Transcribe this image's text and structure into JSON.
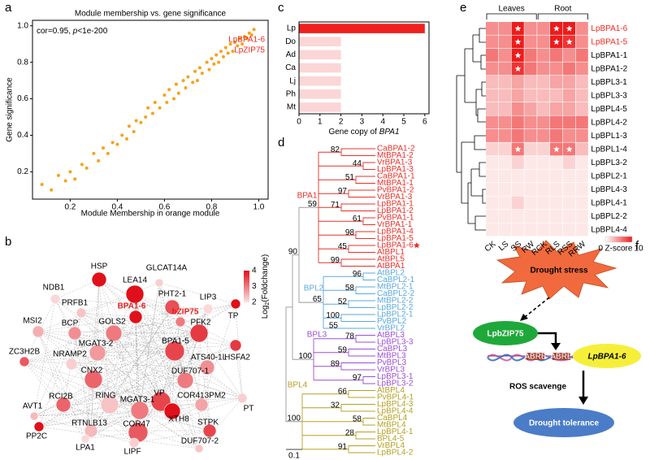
{
  "panel_labels": [
    "a",
    "b",
    "c",
    "d",
    "e",
    "f"
  ],
  "chart_data": [
    {
      "type": "scatter",
      "title": "Module membership vs. gene significance",
      "xlabel": "Module Membership in orange module",
      "ylabel": "Gene significance",
      "annotation": {
        "prefix": "cor=0.95, ",
        "italic": "p",
        "suffix": "<1e-200"
      },
      "highlight_labels": [
        "LpBPA1-6",
        "LpZIP75"
      ],
      "highlight_color": "#f0281e",
      "color": "#f6a21c",
      "xlim": [
        0.04,
        1.04
      ],
      "ylim": [
        0.05,
        1.03
      ],
      "xticks": [
        0.2,
        0.4,
        0.6,
        0.8,
        {
          "value": 1,
          "label": "1.0"
        }
      ],
      "yticks": [
        0.2,
        0.4,
        0.6,
        0.8,
        {
          "value": 1,
          "label": "1.0"
        }
      ],
      "x": [
        0.08,
        0.12,
        0.15,
        0.18,
        0.2,
        0.22,
        0.25,
        0.27,
        0.3,
        0.32,
        0.34,
        0.36,
        0.38,
        0.4,
        0.42,
        0.44,
        0.45,
        0.47,
        0.48,
        0.5,
        0.52,
        0.53,
        0.55,
        0.56,
        0.58,
        0.6,
        0.61,
        0.62,
        0.64,
        0.65,
        0.66,
        0.68,
        0.69,
        0.7,
        0.72,
        0.73,
        0.74,
        0.75,
        0.76,
        0.78,
        0.79,
        0.8,
        0.81,
        0.82,
        0.83,
        0.84,
        0.85,
        0.86,
        0.87,
        0.88,
        0.89,
        0.9,
        0.91,
        0.92,
        0.93,
        0.94,
        0.95,
        0.96,
        0.97,
        0.98
      ],
      "y": [
        0.13,
        0.1,
        0.18,
        0.15,
        0.2,
        0.16,
        0.24,
        0.22,
        0.3,
        0.26,
        0.33,
        0.3,
        0.36,
        0.35,
        0.4,
        0.38,
        0.45,
        0.42,
        0.48,
        0.47,
        0.5,
        0.55,
        0.52,
        0.58,
        0.55,
        0.62,
        0.58,
        0.65,
        0.6,
        0.68,
        0.63,
        0.7,
        0.66,
        0.72,
        0.69,
        0.75,
        0.7,
        0.77,
        0.74,
        0.8,
        0.76,
        0.82,
        0.79,
        0.84,
        0.8,
        0.86,
        0.83,
        0.88,
        0.85,
        0.9,
        0.86,
        0.91,
        0.89,
        0.93,
        0.9,
        0.94,
        0.93,
        0.96,
        0.95,
        0.98
      ]
    },
    {
      "type": "bar",
      "orientation": "horizontal",
      "categories": [
        "Lp",
        "Do",
        "Ad",
        "Ca",
        "Lj",
        "Ph",
        "Mt"
      ],
      "values": [
        6,
        2,
        2,
        2,
        2,
        2,
        2
      ],
      "colors": [
        "#f0201e",
        "#fbd6d6",
        "#fbd6d6",
        "#fbd6d6",
        "#fbd6d6",
        "#fbd6d6",
        "#fbd6d6"
      ],
      "xlabel": {
        "prefix": "Gene copy of ",
        "italic": "BPA1"
      },
      "xlim": [
        0,
        6.2
      ],
      "xticks": [
        0,
        1,
        2,
        3,
        4,
        5,
        6
      ]
    },
    {
      "type": "heatmap",
      "rows": [
        "LpBPA1-6",
        "LpBPA1-5",
        "LpBPA1-1",
        "LpBPA1-2",
        "LpBPL3-1",
        "LpBPL3-3",
        "LpBPL4-5",
        "LpBPL4-2",
        "LpBPL1-3",
        "LpBPL1-4",
        "LpBPL3-2",
        "LpBPL2-1",
        "LpBPL4-3",
        "LpBPL4-1",
        "LpBPL2-2",
        "LpBPL4-4"
      ],
      "columns": [
        "CK",
        "LS",
        "SS",
        "RW",
        "RCK",
        "RLS",
        "RSS",
        "RRW"
      ],
      "groups": [
        {
          "name": "Leaves",
          "columns": [
            0,
            3
          ]
        },
        {
          "name": "Root",
          "columns": [
            4,
            7
          ]
        }
      ],
      "highlight_rows": [
        0,
        1
      ],
      "highlight_color": "#f0281e",
      "values": [
        [
          5,
          5,
          10,
          5,
          5,
          10,
          10,
          5
        ],
        [
          5,
          5,
          10,
          5,
          5,
          10,
          9,
          5
        ],
        [
          6,
          5,
          10,
          6,
          5,
          6,
          5,
          6
        ],
        [
          5,
          5,
          9,
          6,
          5,
          5,
          6,
          5
        ],
        [
          3,
          3,
          4,
          3,
          3,
          4,
          4,
          3
        ],
        [
          3,
          3,
          4,
          3,
          3,
          3,
          4,
          3
        ],
        [
          3,
          3,
          5,
          4,
          3,
          4,
          4,
          3
        ],
        [
          5,
          5,
          6,
          5,
          5,
          6,
          6,
          6
        ],
        [
          5,
          5,
          6,
          5,
          5,
          6,
          5,
          5
        ],
        [
          2,
          2,
          6,
          2,
          2,
          6,
          6,
          3
        ],
        [
          1,
          1,
          2,
          1,
          1,
          1,
          2,
          1
        ],
        [
          1,
          1,
          1,
          1,
          1,
          1,
          1,
          1
        ],
        [
          1,
          1,
          1,
          1,
          1,
          1,
          1,
          1
        ],
        [
          1,
          1,
          2,
          1,
          1,
          1,
          1,
          1
        ],
        [
          1,
          1,
          1,
          1,
          1,
          1,
          1,
          1
        ],
        [
          1,
          1,
          1,
          1,
          1,
          1,
          1,
          1
        ]
      ],
      "stars": [
        [
          0,
          2
        ],
        [
          0,
          5
        ],
        [
          0,
          6
        ],
        [
          1,
          2
        ],
        [
          1,
          5
        ],
        [
          1,
          6
        ],
        [
          2,
          2
        ],
        [
          3,
          2
        ],
        [
          9,
          2
        ],
        [
          9,
          5
        ],
        [
          9,
          6
        ]
      ],
      "colorbar": {
        "label": "Z-score",
        "ticks": [
          0,
          10
        ],
        "colors": [
          "#ffffff",
          "#ec1c1c"
        ]
      }
    }
  ],
  "network": {
    "colorbar": {
      "label_prefix": "Log",
      "label_sub": "2",
      "label_suffix": "(Foldchange)",
      "ticks": [
        2,
        3,
        4
      ],
      "colors": [
        "#fbe3e3",
        "#e0101a"
      ]
    },
    "highlight_color": "#e0201e",
    "nodes": [
      {
        "label": "HSP",
        "log2fc": 4
      },
      {
        "label": "GLCAT14A",
        "log2fc": 2.2
      },
      {
        "label": "LEA14",
        "log2fc": 4
      },
      {
        "label": "NDB1",
        "log2fc": 2.1
      },
      {
        "label": "PRFB1",
        "log2fc": 2.3
      },
      {
        "label": "PHT2-1",
        "log2fc": 3.4
      },
      {
        "label": "LIP3",
        "log2fc": 2.1
      },
      {
        "label": "BPA1-6",
        "log2fc": 4,
        "highlight": true
      },
      {
        "label": "bZIP75",
        "log2fc": 3,
        "highlight": true
      },
      {
        "label": "TP",
        "log2fc": 4
      },
      {
        "label": "MSI2",
        "log2fc": 2.5
      },
      {
        "label": "BCP",
        "log2fc": 2.8
      },
      {
        "label": "GOLS2",
        "log2fc": 3
      },
      {
        "label": "PFK2",
        "log2fc": 3.6
      },
      {
        "label": "BPA1-5",
        "log2fc": 3.5
      },
      {
        "label": "HSFA2",
        "log2fc": 3.6
      },
      {
        "label": "ZC3H2B",
        "log2fc": 3.3
      },
      {
        "label": "NRAMP2",
        "log2fc": 2.2
      },
      {
        "label": "MGAT3-2",
        "log2fc": 2.7
      },
      {
        "label": "ATS40-1L",
        "log2fc": 2.8
      },
      {
        "label": "DUF707-1",
        "log2fc": 3
      },
      {
        "label": "CNX2",
        "log2fc": 3.2
      },
      {
        "label": "AVT1",
        "log2fc": 2.4
      },
      {
        "label": "RCI2B",
        "log2fc": 3.2
      },
      {
        "label": "RING",
        "log2fc": 2.3
      },
      {
        "label": "MGAT3-1",
        "log2fc": 3
      },
      {
        "label": "VP",
        "log2fc": 3.5
      },
      {
        "label": "COR413PM2",
        "log2fc": 2.6
      },
      {
        "label": "PT",
        "log2fc": 2.2
      },
      {
        "label": "RTNLB13",
        "log2fc": 2.4
      },
      {
        "label": "XTH8",
        "log2fc": 4
      },
      {
        "label": "COR47",
        "log2fc": 3.3
      },
      {
        "label": "STPK",
        "log2fc": 3.5
      },
      {
        "label": "PP2C",
        "log2fc": 4
      },
      {
        "label": "LPA1",
        "log2fc": 2.1
      },
      {
        "label": "LIPF",
        "log2fc": 2.2
      },
      {
        "label": "DUF707-2",
        "log2fc": 2.3
      }
    ]
  },
  "tree": {
    "scale": "0.1",
    "marked_leaf": "LpBPA1-6",
    "marker_color": "#f0281e",
    "junction_support": [
      90
    ],
    "groups": [
      {
        "name": "BPA1",
        "color": "#e8302a",
        "support": 59,
        "leaves": [
          "CaBPA1-2",
          "MtBPA1-2",
          "VrBPA1-3",
          "LpBPA1-3",
          "CaBPA1-1",
          "MtBPA1-1",
          "PvBPA1-2",
          "VrBPA1-3",
          "LpBPA1-1",
          "LpBPA1-2",
          "PvBPA1-1",
          "VrBPA1-1",
          "LpBPA1-4",
          "LpBPA1-5",
          "LpBPA1-6",
          "AtBPL1",
          "AtBPL5",
          "AtBPA1"
        ],
        "bootstrap": [
          82,
          44,
          51,
          97,
          71,
          61,
          98,
          45,
          99
        ]
      },
      {
        "name": "BPL2",
        "color": "#5aa9de",
        "support": 65,
        "leaves": [
          "AtBPL2",
          "CaBPL2-1",
          "MtBPL2-1",
          "CaBPL2-2",
          "MtBPL2-2",
          "LpBPL2-2",
          "LpBPL2-1",
          "PvBPL2",
          "VrBPL2"
        ],
        "bootstrap": [
          96,
          58,
          52,
          100,
          55
        ]
      },
      {
        "name": "BPL3",
        "color": "#9b4fd6",
        "support": 100,
        "leaves": [
          "AtBPL3",
          "LpBPL3-3",
          "CaBPL3",
          "MtBPL3",
          "PvBPL3",
          "VrBPL3",
          "LpBPL3-1",
          "LpBPL3-2"
        ],
        "bootstrap": [
          78,
          59,
          89,
          97
        ]
      },
      {
        "name": "BPL4",
        "color": "#b5a024",
        "support": 100,
        "leaves": [
          "AtBPL4",
          "PvBPL4-1",
          "LpBPL4-3",
          "LpBPL4-4",
          "CaBPL4",
          "MtBPL4",
          "LpBPL4-1",
          "BPL4-5",
          "VrBPL4",
          "LpBPL4-2"
        ],
        "bootstrap": [
          66,
          32,
          58,
          28,
          91
        ]
      }
    ]
  },
  "diagram": {
    "stress": "Drought stress",
    "tf": "LpbZIP75",
    "motifs": [
      "ABRE",
      "ABRE"
    ],
    "gene": "LpBPA1-6",
    "process": "ROS scavenge",
    "outcome": "Drought tolerance"
  }
}
